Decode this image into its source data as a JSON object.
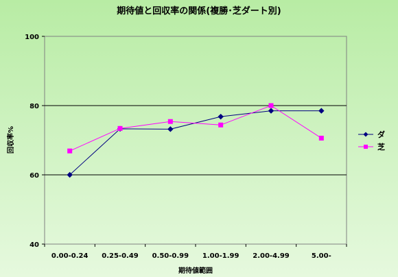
{
  "chart_data": {
    "type": "line",
    "title": "期待値と回収率の関係(複勝･芝ダート別)",
    "xlabel": "期待値範囲",
    "ylabel": "回収率%",
    "categories": [
      "0.00-0.24",
      "0.25-0.49",
      "0.50-0.99",
      "1.00-1.99",
      "2.00-4.99",
      "5.00-"
    ],
    "ylim": [
      40,
      100
    ],
    "yticks": [
      40,
      60,
      80,
      100
    ],
    "grid": "horizontal",
    "legend_position": "right",
    "series": [
      {
        "name": "ダ",
        "values": [
          60,
          73.3,
          73.2,
          76.8,
          78.5,
          78.5
        ],
        "color": "#000080",
        "marker": "diamond"
      },
      {
        "name": "芝",
        "values": [
          66.9,
          73.4,
          75.4,
          74.4,
          80,
          70.6
        ],
        "color": "#ff00ff",
        "marker": "square"
      }
    ]
  }
}
